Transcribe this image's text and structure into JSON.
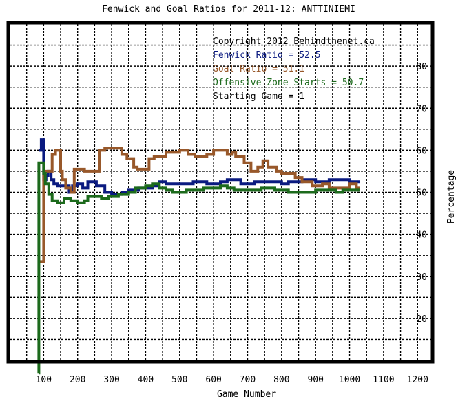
{
  "chart_data": {
    "type": "line",
    "title": "Fenwick and Goal Ratios for 2011-12: ANTTINIEMI",
    "xlabel": "Game Number",
    "ylabel": "Percentage",
    "xlim": [
      0,
      1240
    ],
    "ylim": [
      10,
      90
    ],
    "x_ticks": [
      100,
      200,
      300,
      400,
      500,
      600,
      700,
      800,
      900,
      1000,
      1100,
      1200
    ],
    "y_ticks": [
      20,
      30,
      40,
      50,
      60,
      70,
      80
    ],
    "grid": true,
    "legend_position": "top-right",
    "annotations": [
      {
        "text": "Copyright 2012 Behindthenet.ca",
        "color": "#000000"
      },
      {
        "text": "Fenwick Ratio = 52.5",
        "color": "#0a1a80"
      },
      {
        "text": "Goal Ratio = 51.1",
        "color": "#98582a"
      },
      {
        "text": "Offensive Zone Starts = 50.7",
        "color": "#1c6a1c"
      },
      {
        "text": "Starting Game = 1",
        "color": "#000000"
      }
    ],
    "series": [
      {
        "color": "#0a1a80",
        "points": [
          [
            85,
            60
          ],
          [
            93,
            60
          ],
          [
            93,
            62.5
          ],
          [
            100,
            62.5
          ],
          [
            100,
            53
          ],
          [
            107,
            53
          ],
          [
            107,
            54
          ],
          [
            113,
            54
          ],
          [
            113,
            55
          ],
          [
            122,
            55
          ],
          [
            122,
            53
          ],
          [
            130,
            53
          ],
          [
            130,
            52
          ],
          [
            140,
            52
          ],
          [
            140,
            51.5
          ],
          [
            175,
            51.5
          ],
          [
            175,
            50
          ],
          [
            185,
            50
          ],
          [
            185,
            51.5
          ],
          [
            200,
            51.5
          ],
          [
            200,
            52
          ],
          [
            215,
            52
          ],
          [
            215,
            51
          ],
          [
            230,
            51
          ],
          [
            230,
            52.5
          ],
          [
            255,
            52.5
          ],
          [
            255,
            51.5
          ],
          [
            280,
            51.5
          ],
          [
            280,
            50
          ],
          [
            300,
            50
          ],
          [
            300,
            49.5
          ],
          [
            330,
            49.5
          ],
          [
            330,
            50
          ],
          [
            350,
            50
          ],
          [
            350,
            50.5
          ],
          [
            380,
            50.5
          ],
          [
            380,
            51
          ],
          [
            420,
            51
          ],
          [
            420,
            51.5
          ],
          [
            440,
            51.5
          ],
          [
            440,
            52.5
          ],
          [
            460,
            52.5
          ],
          [
            460,
            52
          ],
          [
            540,
            52
          ],
          [
            540,
            52.5
          ],
          [
            580,
            52.5
          ],
          [
            580,
            52
          ],
          [
            620,
            52
          ],
          [
            620,
            52.5
          ],
          [
            640,
            52.5
          ],
          [
            640,
            53
          ],
          [
            680,
            53
          ],
          [
            680,
            52
          ],
          [
            720,
            52
          ],
          [
            720,
            52.5
          ],
          [
            800,
            52.5
          ],
          [
            800,
            52
          ],
          [
            820,
            52
          ],
          [
            820,
            52.5
          ],
          [
            860,
            52.5
          ],
          [
            860,
            53
          ],
          [
            900,
            53
          ],
          [
            900,
            52.5
          ],
          [
            940,
            52.5
          ],
          [
            940,
            53
          ],
          [
            1000,
            53
          ],
          [
            1000,
            52.5
          ],
          [
            1030,
            52.5
          ]
        ]
      },
      {
        "color": "#98582a",
        "points": [
          [
            85,
            33.5
          ],
          [
            100,
            33.5
          ],
          [
            100,
            55
          ],
          [
            125,
            55
          ],
          [
            125,
            59
          ],
          [
            135,
            59
          ],
          [
            135,
            60
          ],
          [
            150,
            60
          ],
          [
            150,
            55
          ],
          [
            155,
            55
          ],
          [
            155,
            53
          ],
          [
            165,
            53
          ],
          [
            165,
            51
          ],
          [
            180,
            51
          ],
          [
            180,
            50
          ],
          [
            190,
            50
          ],
          [
            190,
            55.5
          ],
          [
            220,
            55.5
          ],
          [
            220,
            55
          ],
          [
            265,
            55
          ],
          [
            265,
            60
          ],
          [
            280,
            60
          ],
          [
            280,
            60.5
          ],
          [
            330,
            60.5
          ],
          [
            330,
            59
          ],
          [
            345,
            59
          ],
          [
            345,
            58
          ],
          [
            365,
            58
          ],
          [
            365,
            56
          ],
          [
            375,
            56
          ],
          [
            375,
            55.5
          ],
          [
            410,
            55.5
          ],
          [
            410,
            58
          ],
          [
            425,
            58
          ],
          [
            425,
            58.5
          ],
          [
            460,
            58.5
          ],
          [
            460,
            59.5
          ],
          [
            500,
            59.5
          ],
          [
            500,
            60
          ],
          [
            525,
            60
          ],
          [
            525,
            59
          ],
          [
            545,
            59
          ],
          [
            545,
            58.5
          ],
          [
            580,
            58.5
          ],
          [
            580,
            59
          ],
          [
            600,
            59
          ],
          [
            600,
            60
          ],
          [
            640,
            60
          ],
          [
            640,
            59
          ],
          [
            655,
            59
          ],
          [
            655,
            59.5
          ],
          [
            665,
            59.5
          ],
          [
            665,
            58.5
          ],
          [
            690,
            58.5
          ],
          [
            690,
            57
          ],
          [
            710,
            57
          ],
          [
            710,
            55
          ],
          [
            730,
            55
          ],
          [
            730,
            56
          ],
          [
            745,
            56
          ],
          [
            745,
            57.5
          ],
          [
            760,
            57.5
          ],
          [
            760,
            56
          ],
          [
            785,
            56
          ],
          [
            785,
            55
          ],
          [
            800,
            55
          ],
          [
            800,
            54.5
          ],
          [
            840,
            54.5
          ],
          [
            840,
            53.5
          ],
          [
            860,
            53.5
          ],
          [
            860,
            52.5
          ],
          [
            890,
            52.5
          ],
          [
            890,
            51.5
          ],
          [
            920,
            51.5
          ],
          [
            920,
            52
          ],
          [
            940,
            52
          ],
          [
            940,
            51
          ],
          [
            1000,
            51
          ],
          [
            1000,
            52
          ],
          [
            1020,
            52
          ],
          [
            1020,
            51
          ],
          [
            1030,
            51
          ]
        ]
      },
      {
        "color": "#1c6a1c",
        "points": [
          [
            85,
            7
          ],
          [
            86,
            7
          ],
          [
            86,
            57
          ],
          [
            100,
            57
          ],
          [
            100,
            54.5
          ],
          [
            105,
            54.5
          ],
          [
            105,
            52
          ],
          [
            115,
            52
          ],
          [
            115,
            49.5
          ],
          [
            125,
            49.5
          ],
          [
            125,
            48
          ],
          [
            140,
            48
          ],
          [
            140,
            47.5
          ],
          [
            160,
            47.5
          ],
          [
            160,
            48.5
          ],
          [
            180,
            48.5
          ],
          [
            180,
            48
          ],
          [
            200,
            48
          ],
          [
            200,
            47.5
          ],
          [
            220,
            47.5
          ],
          [
            220,
            48
          ],
          [
            230,
            48
          ],
          [
            230,
            49
          ],
          [
            270,
            49
          ],
          [
            270,
            48.5
          ],
          [
            290,
            48.5
          ],
          [
            290,
            49
          ],
          [
            320,
            49
          ],
          [
            320,
            49.5
          ],
          [
            350,
            49.5
          ],
          [
            350,
            50
          ],
          [
            370,
            50
          ],
          [
            370,
            51
          ],
          [
            400,
            51
          ],
          [
            400,
            51.5
          ],
          [
            420,
            51.5
          ],
          [
            420,
            52
          ],
          [
            440,
            52
          ],
          [
            440,
            51
          ],
          [
            460,
            51
          ],
          [
            460,
            50.5
          ],
          [
            480,
            50.5
          ],
          [
            480,
            50
          ],
          [
            520,
            50
          ],
          [
            520,
            50.5
          ],
          [
            570,
            50.5
          ],
          [
            570,
            51
          ],
          [
            620,
            51
          ],
          [
            620,
            51.5
          ],
          [
            640,
            51.5
          ],
          [
            640,
            51
          ],
          [
            660,
            51
          ],
          [
            660,
            50.5
          ],
          [
            740,
            50.5
          ],
          [
            740,
            51
          ],
          [
            780,
            51
          ],
          [
            780,
            50.5
          ],
          [
            820,
            50.5
          ],
          [
            820,
            50
          ],
          [
            900,
            50
          ],
          [
            900,
            50.5
          ],
          [
            960,
            50.5
          ],
          [
            960,
            50
          ],
          [
            980,
            50
          ],
          [
            980,
            50.5
          ],
          [
            1030,
            50.5
          ]
        ]
      }
    ]
  }
}
